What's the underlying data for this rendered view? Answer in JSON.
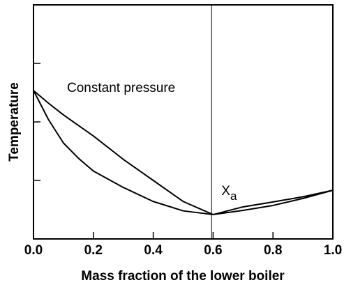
{
  "chart_data": {
    "type": "line",
    "xlabel": "Mass fraction of the lower boiler",
    "ylabel": "Temperature",
    "annotation": "Constant pressure",
    "marker_label": "X",
    "marker_label_sub": "a",
    "vline": 0.595,
    "xlim": [
      0,
      1
    ],
    "ylim": [
      0,
      1
    ],
    "xticks": [
      {
        "value": 0,
        "label": "0.0"
      },
      0.2,
      0.4,
      0.6,
      0.8,
      {
        "value": 1,
        "label": "1.0"
      }
    ],
    "yticks": [
      0.25,
      0.5,
      0.75
    ],
    "x": [
      0,
      0.05,
      0.1,
      0.15,
      0.2,
      0.3,
      0.4,
      0.5,
      0.6,
      0.7,
      0.8,
      0.9,
      1.0
    ],
    "series": [
      {
        "color": "#000000",
        "values": [
          0.634,
          0.58,
          0.53,
          0.485,
          0.44,
          0.34,
          0.25,
          0.16,
          0.104,
          0.137,
          0.158,
          0.18,
          0.208
        ]
      },
      {
        "color": "#000000",
        "values": [
          0.634,
          0.51,
          0.41,
          0.345,
          0.29,
          0.22,
          0.16,
          0.12,
          0.104,
          0.122,
          0.143,
          0.173,
          0.208
        ]
      }
    ]
  }
}
